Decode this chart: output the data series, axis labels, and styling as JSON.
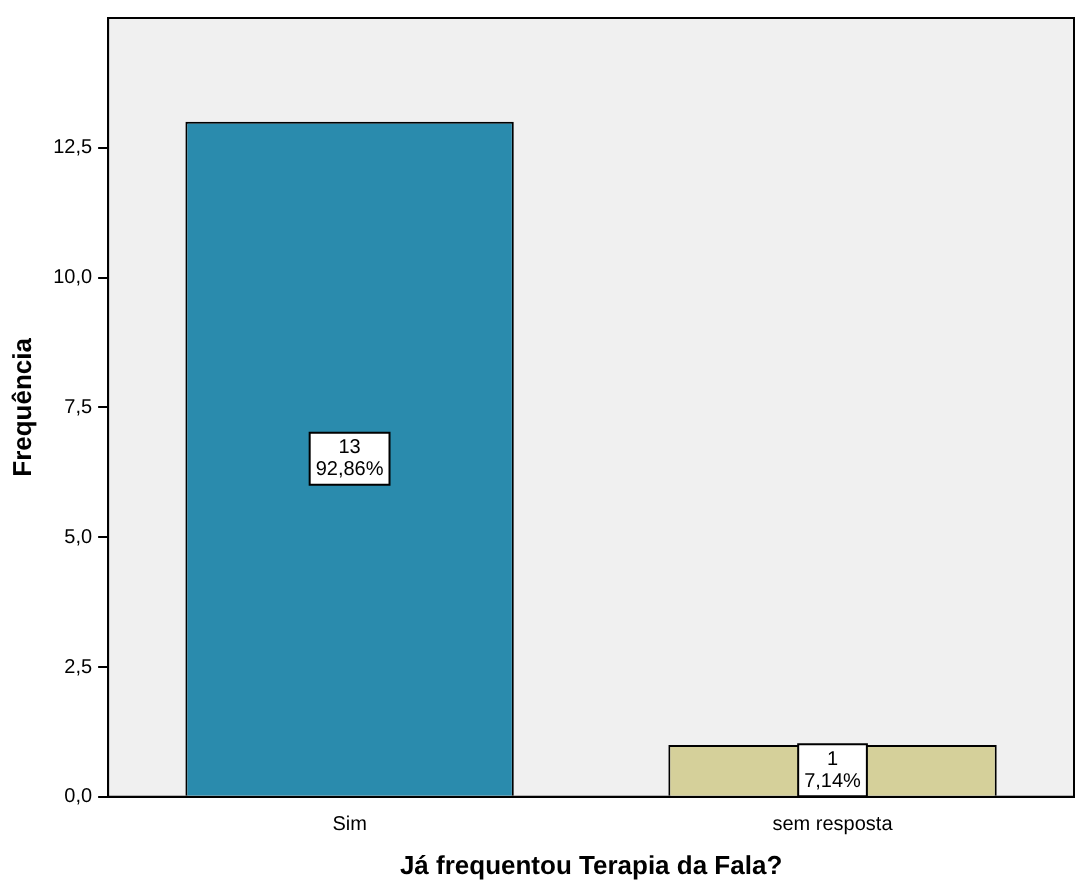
{
  "chart_data": {
    "type": "bar",
    "xlabel": "Já frequentou Terapia da Fala?",
    "ylabel": "Frequência",
    "categories": [
      "Sim",
      "sem resposta"
    ],
    "values": [
      13,
      1
    ],
    "colors": [
      "#2a8bad",
      "#d5d09a"
    ],
    "value_labels": [
      "13\n92,86%",
      "1\n7,14%"
    ],
    "ylim": [
      0,
      15
    ],
    "yticks": [
      {
        "value": 0,
        "label": "0,0"
      },
      {
        "value": 2.5,
        "label": "2,5"
      },
      {
        "value": 5,
        "label": "5,0"
      },
      {
        "value": 7.5,
        "label": "7,5"
      },
      {
        "value": 10,
        "label": "10,0"
      },
      {
        "value": 12.5,
        "label": "12,5"
      }
    ],
    "grid": false,
    "legend": false
  }
}
